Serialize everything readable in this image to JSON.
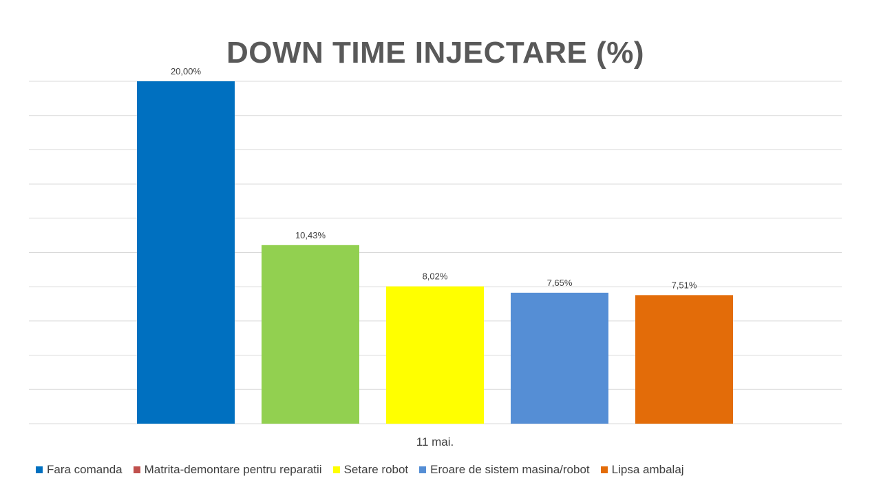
{
  "chart_data": {
    "type": "bar",
    "title": "DOWN TIME INJECTARE (%)",
    "categories": [
      "11  mai."
    ],
    "ylim": [
      0,
      20
    ],
    "grid": true,
    "legend_position": "bottom",
    "series": [
      {
        "name": "Fara comanda",
        "values": [
          20.0
        ],
        "label": "20,00%",
        "color": "#0070C0"
      },
      {
        "name": "Matrita-demontare pentru reparatii",
        "values": [
          10.43
        ],
        "label": "10,43%",
        "color": "#92D050"
      },
      {
        "name": "Setare robot",
        "values": [
          8.02
        ],
        "label": "8,02%",
        "color": "#FFFF00"
      },
      {
        "name": "Eroare de sistem masina/robot",
        "values": [
          7.65
        ],
        "label": "7,65%",
        "color": "#558ED5"
      },
      {
        "name": "Lipsa ambalaj",
        "values": [
          7.51
        ],
        "label": "7,51%",
        "color": "#E36C09"
      }
    ],
    "legend_colors": [
      "#0070C0",
      "#C0504D",
      "#FFFF00",
      "#558ED5",
      "#E36C09"
    ]
  }
}
